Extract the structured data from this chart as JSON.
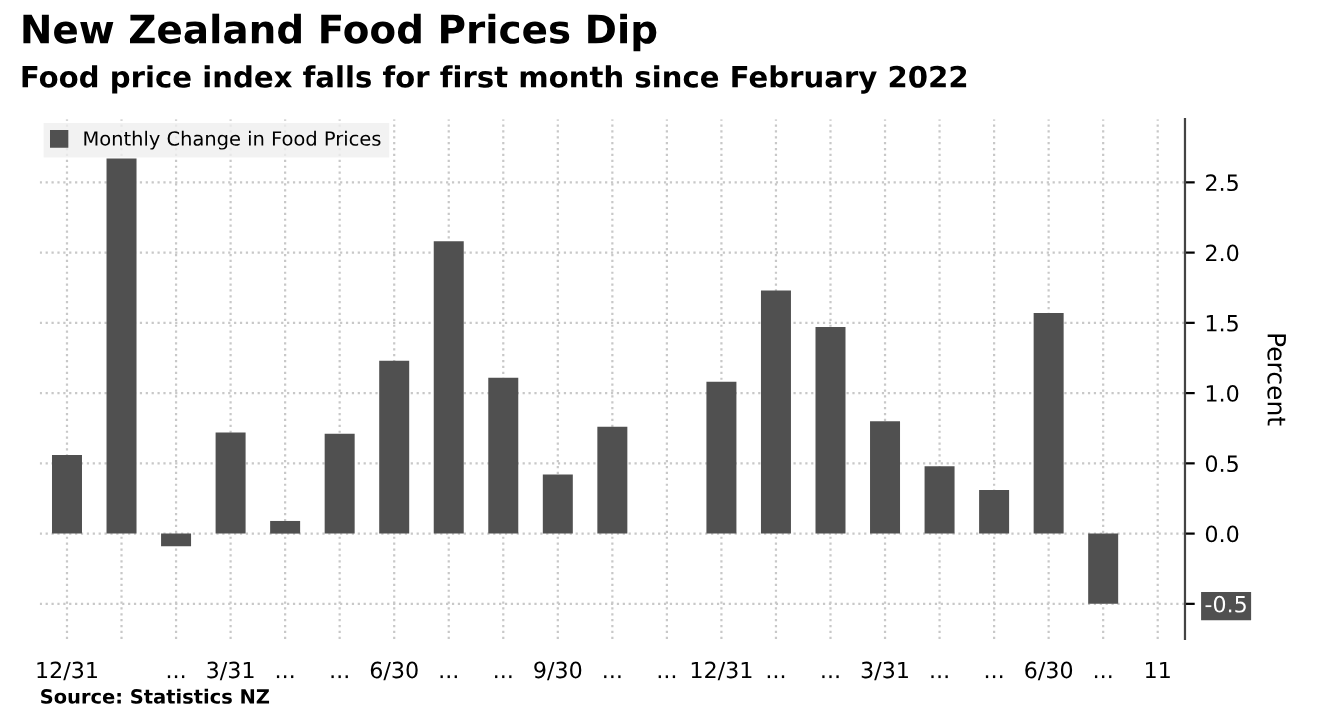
{
  "chart_data": {
    "type": "bar",
    "title": "New Zealand Food Prices Dip",
    "subtitle": "Food price index falls for first month since February 2022",
    "ylabel": "Percent",
    "categories": [
      "12/31",
      null,
      "...",
      "3/31",
      "...",
      "...",
      "6/30",
      "...",
      "...",
      "9/30",
      "...",
      "...",
      "12/31",
      "...",
      "...",
      "3/31",
      "...",
      "...",
      "6/30",
      "...",
      "11"
    ],
    "series": [
      {
        "name": "Monthly Change in Food Prices",
        "color": "#505050",
        "values": [
          0.56,
          2.67,
          -0.09,
          0.72,
          0.09,
          0.71,
          1.23,
          2.08,
          1.11,
          0.42,
          0.76,
          0.0,
          1.08,
          1.73,
          1.47,
          0.8,
          0.48,
          0.31,
          1.57,
          -0.5,
          null
        ]
      }
    ],
    "ylim": [
      -0.75,
      2.95
    ],
    "yticks": [
      -0.5,
      {
        "value": 0,
        "label": "0.0"
      },
      0.5,
      {
        "value": 1,
        "label": "1.0"
      },
      1.5,
      {
        "value": 2,
        "label": "2.0"
      },
      2.5
    ],
    "grid": true,
    "legend": "top left",
    "annotations": [
      "Source: Statistics NZ"
    ]
  }
}
